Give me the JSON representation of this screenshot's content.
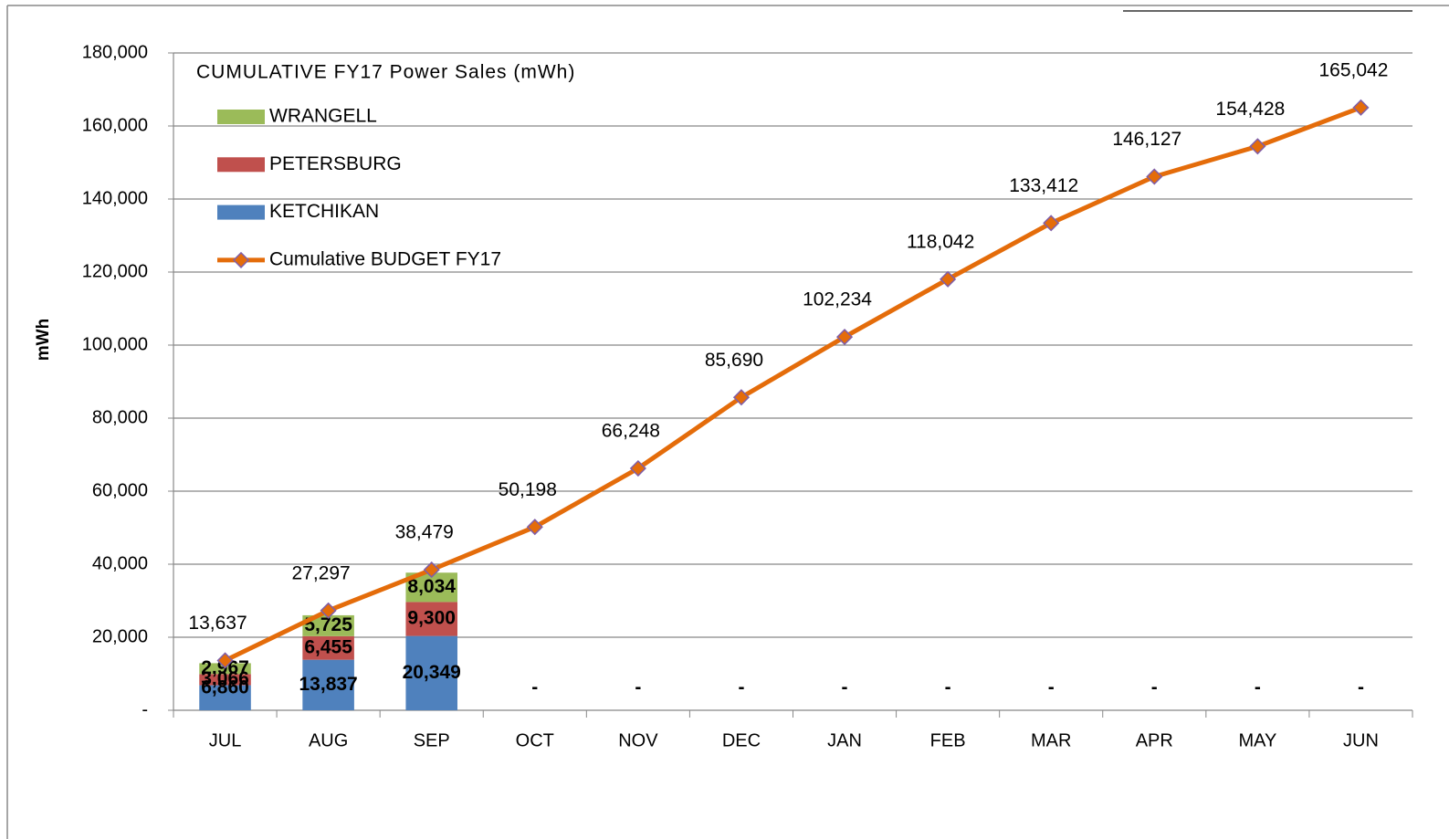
{
  "chart_data": {
    "type": "bar",
    "stacked": true,
    "title": "CUMULATIVE FY17 Power Sales (mWh)",
    "y_label": "mWh",
    "categories": [
      "JUL",
      "AUG",
      "SEP",
      "OCT",
      "NOV",
      "DEC",
      "JAN",
      "FEB",
      "MAR",
      "APR",
      "MAY",
      "JUN"
    ],
    "series": [
      {
        "name": "KETCHIKAN",
        "color": "#4f81bd",
        "type": "bar",
        "values": [
          6860,
          13837,
          20349,
          0,
          0,
          0,
          0,
          0,
          0,
          0,
          0,
          0
        ],
        "value_labels": [
          "6,860",
          "13,837",
          "20,349",
          "-",
          "-",
          "-",
          "-",
          "-",
          "-",
          "-",
          "-",
          "-"
        ]
      },
      {
        "name": "PETERSBURG",
        "color": "#c0504d",
        "type": "bar",
        "values": [
          3066,
          6455,
          9300,
          null,
          null,
          null,
          null,
          null,
          null,
          null,
          null,
          null
        ],
        "value_labels": [
          "3,066",
          "6,455",
          "9,300",
          null,
          null,
          null,
          null,
          null,
          null,
          null,
          null,
          null
        ]
      },
      {
        "name": "WRANGELL",
        "color": "#9bbb59",
        "type": "bar",
        "values": [
          2967,
          5725,
          8034,
          null,
          null,
          null,
          null,
          null,
          null,
          null,
          null,
          null
        ],
        "value_labels": [
          "2,967",
          "5,725",
          "8,034",
          null,
          null,
          null,
          null,
          null,
          null,
          null,
          null,
          null
        ]
      },
      {
        "name": "Cumulative BUDGET FY17",
        "color": "#e46c0a",
        "type": "line",
        "values": [
          13637,
          27297,
          38479,
          50198,
          66248,
          85690,
          102234,
          118042,
          133412,
          146127,
          154428,
          165042
        ],
        "value_labels": [
          "13,637",
          "27,297",
          "38,479",
          "50,198",
          "66,248",
          "85,690",
          "102,234",
          "118,042",
          "133,412",
          "146,127",
          "154,428",
          "165,042"
        ]
      }
    ],
    "ylim": [
      0,
      180000
    ],
    "yticks": [
      {
        "value": 0,
        "label": "-"
      },
      {
        "value": 20000,
        "label": "20,000"
      },
      {
        "value": 40000,
        "label": "40,000"
      },
      {
        "value": 60000,
        "label": "60,000"
      },
      {
        "value": 80000,
        "label": "80,000"
      },
      {
        "value": 100000,
        "label": "100,000"
      },
      {
        "value": 120000,
        "label": "120,000"
      },
      {
        "value": 140000,
        "label": "140,000"
      },
      {
        "value": 160000,
        "label": "160,000"
      },
      {
        "value": 180000,
        "label": "180,000"
      }
    ],
    "grid": true,
    "legend": "upper left"
  }
}
